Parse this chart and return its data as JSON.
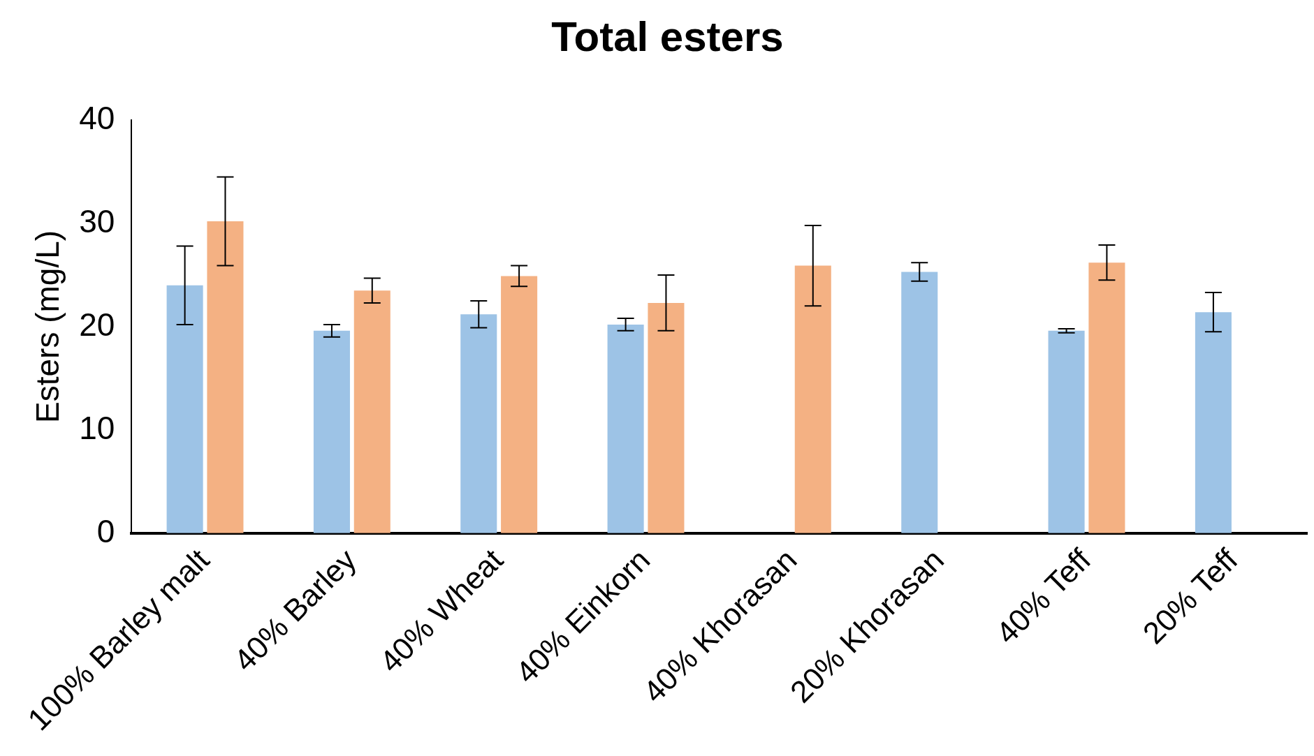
{
  "chart_data": {
    "type": "bar",
    "title": "Total esters",
    "ylabel": "Esters (mg/L)",
    "categories": [
      "100% Barley malt",
      "40% Barley",
      "40% Wheat",
      "40% Einkorn",
      "40% Khorasan",
      "20% Khorasan",
      "40% Teff",
      "20% Teff"
    ],
    "series": [
      {
        "color": "#9dc3e6",
        "values": [
          24.0,
          19.6,
          21.2,
          20.2,
          null,
          25.3,
          19.6,
          21.4
        ],
        "errors": [
          3.8,
          0.6,
          1.3,
          0.6,
          null,
          0.9,
          0.2,
          1.9
        ]
      },
      {
        "color": "#f4b183",
        "values": [
          30.2,
          23.5,
          24.9,
          22.3,
          25.9,
          null,
          26.2,
          null
        ],
        "errors": [
          4.3,
          1.2,
          1.0,
          2.7,
          3.9,
          null,
          1.7,
          null
        ]
      }
    ],
    "ylim": [
      0,
      40
    ],
    "yticks": [
      0,
      10,
      20,
      30,
      40
    ],
    "grid": false,
    "legend": false
  }
}
